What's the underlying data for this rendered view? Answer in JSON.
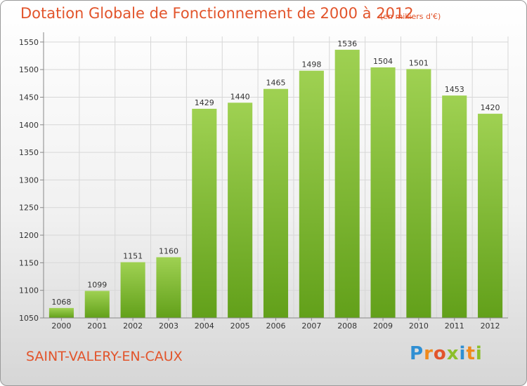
{
  "header": {
    "title": "Dotation Globale de Fonctionnement de 2000 à 2012",
    "unit": "(en milliers d'€)"
  },
  "footer": {
    "commune": "SAINT-VALERY-EN-CAUX",
    "brand": "Proxiti",
    "brand_letters": [
      {
        "char": "P",
        "color": "#2f8fd3"
      },
      {
        "char": "r",
        "color": "#f08a1c"
      },
      {
        "char": "o",
        "color": "#e2542b"
      },
      {
        "char": "x",
        "color": "#8cbf2a"
      },
      {
        "char": "i",
        "color": "#2f8fd3"
      },
      {
        "char": "t",
        "color": "#f08a1c"
      },
      {
        "char": "i",
        "color": "#8cbf2a"
      }
    ]
  },
  "colors": {
    "title": "#e2542b",
    "bar_top": "#9fd152",
    "bar_bottom": "#62a01a",
    "grid": "#d7d7d7",
    "text": "#333333"
  },
  "chart_data": {
    "type": "bar",
    "categories": [
      "2000",
      "2001",
      "2002",
      "2003",
      "2004",
      "2005",
      "2006",
      "2007",
      "2008",
      "2009",
      "2010",
      "2011",
      "2012"
    ],
    "values": [
      1068,
      1099,
      1151,
      1160,
      1429,
      1440,
      1465,
      1498,
      1536,
      1504,
      1501,
      1453,
      1420
    ],
    "ylim": [
      1050,
      1560
    ],
    "yticks": [
      1050,
      1100,
      1150,
      1200,
      1250,
      1300,
      1350,
      1400,
      1450,
      1500,
      1550
    ],
    "grid": true
  }
}
